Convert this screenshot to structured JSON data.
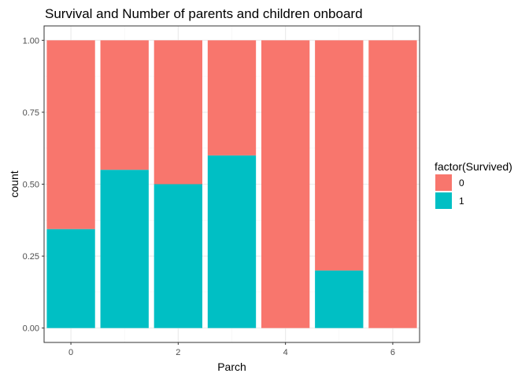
{
  "chart_data": {
    "type": "bar",
    "stacked": true,
    "position": "fill",
    "title": "Survival and Number of parents and children onboard",
    "xlabel": "Parch",
    "ylabel": "count",
    "x": [
      0,
      1,
      2,
      3,
      4,
      5,
      6
    ],
    "x_ticks": [
      "0",
      "2",
      "4",
      "6"
    ],
    "x_tick_values": [
      0,
      2,
      4,
      6
    ],
    "xlim": [
      -0.5,
      6.5
    ],
    "ylim": [
      0,
      1
    ],
    "y_ticks": [
      "0.00",
      "0.25",
      "0.50",
      "0.75",
      "1.00"
    ],
    "y_tick_values": [
      0,
      0.25,
      0.5,
      0.75,
      1.0
    ],
    "grid": true,
    "legend": {
      "title": "factor(Survived)",
      "position": "right",
      "entries": [
        "0",
        "1"
      ]
    },
    "series": [
      {
        "name": "0",
        "color": "#F8766D",
        "values": [
          0.656,
          0.45,
          0.5,
          0.4,
          1.0,
          0.8,
          1.0
        ]
      },
      {
        "name": "1",
        "color": "#00BFC4",
        "values": [
          0.344,
          0.55,
          0.5,
          0.6,
          0.0,
          0.2,
          0.0
        ]
      }
    ]
  }
}
